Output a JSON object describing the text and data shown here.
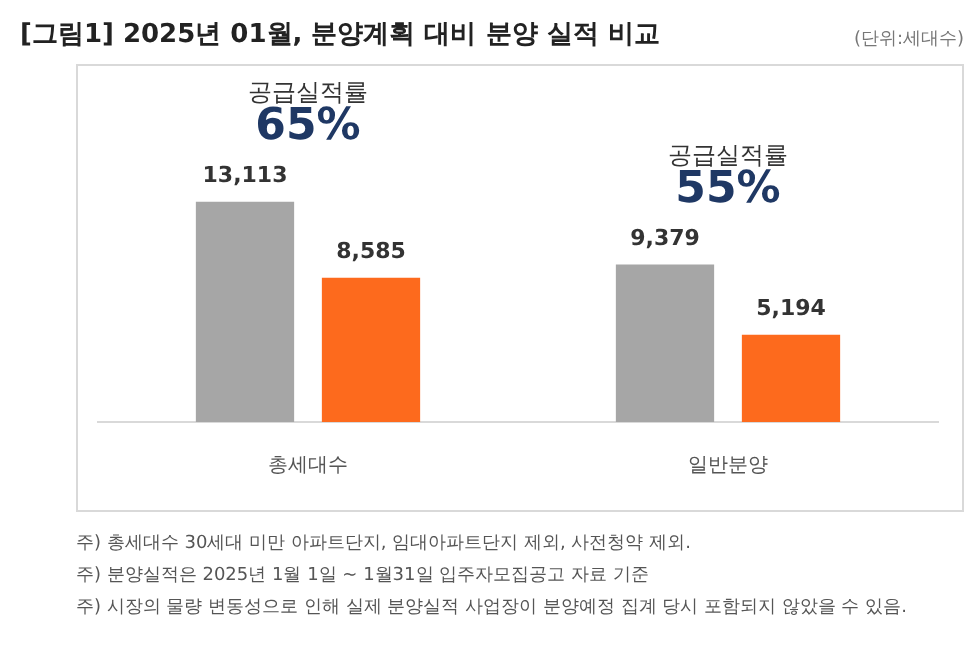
{
  "chart_data": {
    "type": "bar",
    "title": "[그림1] 2025년 01월, 분양계획 대비 분양 실적 비교",
    "subtitle": "(단위:세대수)",
    "categories": [
      "총세대수",
      "일반분양"
    ],
    "series": [
      {
        "color": "#a6a6a6",
        "values": [
          13113,
          9379
        ],
        "value_labels": [
          "13,113",
          "9,379"
        ]
      },
      {
        "color": "#fd6a1d",
        "values": [
          8585,
          5194
        ],
        "value_labels": [
          "8,585",
          "5,194"
        ]
      }
    ],
    "grid": false,
    "legend": false,
    "annotations": [
      "공급실적률",
      "65%",
      "공급실적률",
      "55%",
      "주) 총세대수 30세대 미만 아파트단지, 임대아파트단지 제외, 사전청약 제외.",
      "주) 분양실적은 2025년 1월 1일 ~ 1월31일 입주자모집공고 자료 기준",
      "주) 시장의 물량 변동성으로 인해 실제 분양실적 사업장이 분양예정 집계 당시 포함되지 않았을 수 있음."
    ]
  }
}
